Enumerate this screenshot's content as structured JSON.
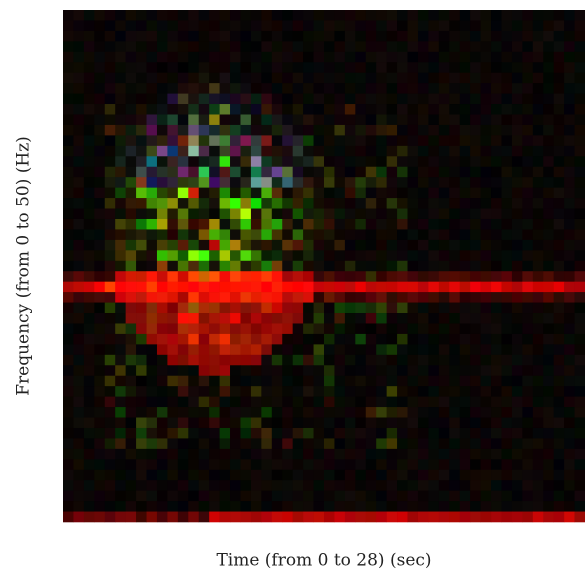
{
  "chart_data": {
    "type": "image",
    "xlabel": "Time (from 0 to 28) (sec)",
    "ylabel": "Frequency (from 0 to 50) (Hz)"
  }
}
